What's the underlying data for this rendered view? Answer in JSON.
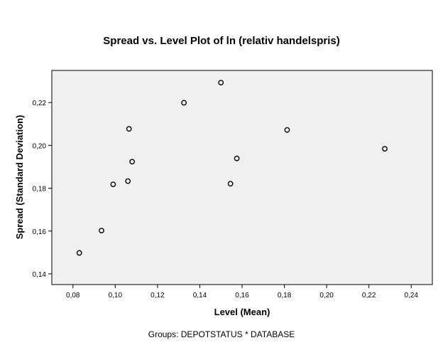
{
  "chart_data": {
    "type": "scatter",
    "title": "Spread vs. Level Plot of ln (relativ handelspris)",
    "xlabel": "Level (Mean)",
    "ylabel": "Spread (Standard Deviation)",
    "footnote": "Groups: DEPOTSTATUS * DATABASE",
    "xlim": [
      0.07,
      0.25
    ],
    "ylim": [
      0.135,
      0.235
    ],
    "xticks": [
      0.08,
      0.1,
      0.12,
      0.14,
      0.16,
      0.18,
      0.2,
      0.22,
      0.24
    ],
    "xtick_labels": [
      "0,08",
      "0,10",
      "0,12",
      "0,14",
      "0,16",
      "0,18",
      "0,20",
      "0,22",
      "0,24"
    ],
    "yticks": [
      0.14,
      0.16,
      0.18,
      0.2,
      0.22
    ],
    "ytick_labels": [
      "0,14",
      "0,16",
      "0,18",
      "0,20",
      "0,22"
    ],
    "grid": false,
    "plot_background": "#f0f0f0",
    "marker_color": "#000000",
    "points": [
      {
        "x": 0.083,
        "y": 0.1498
      },
      {
        "x": 0.0935,
        "y": 0.1602
      },
      {
        "x": 0.099,
        "y": 0.1818
      },
      {
        "x": 0.106,
        "y": 0.1833
      },
      {
        "x": 0.1065,
        "y": 0.2077
      },
      {
        "x": 0.108,
        "y": 0.1924
      },
      {
        "x": 0.1325,
        "y": 0.2199
      },
      {
        "x": 0.15,
        "y": 0.2293
      },
      {
        "x": 0.1545,
        "y": 0.1821
      },
      {
        "x": 0.1575,
        "y": 0.1939
      },
      {
        "x": 0.1813,
        "y": 0.2072
      },
      {
        "x": 0.2275,
        "y": 0.1984
      }
    ]
  }
}
